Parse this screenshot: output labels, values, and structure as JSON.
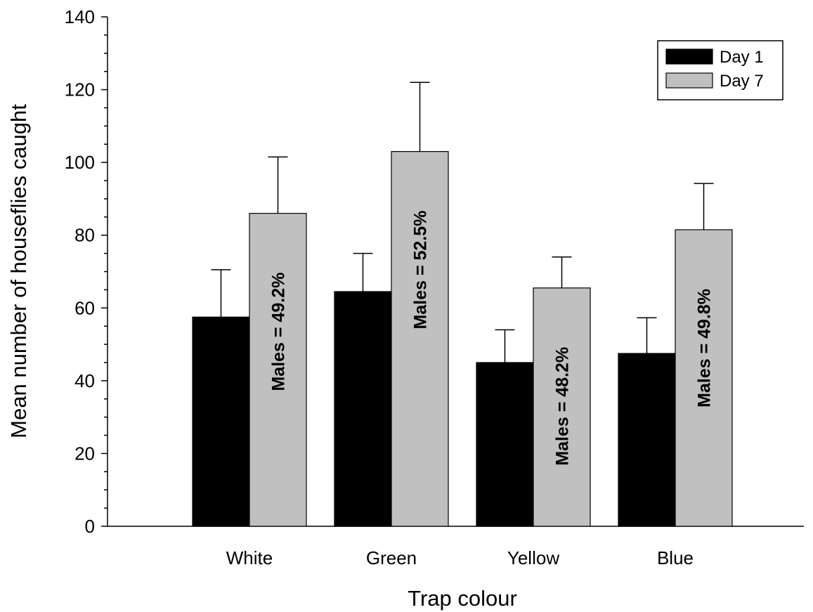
{
  "chart_data": {
    "type": "bar",
    "title": "",
    "xlabel": "Trap colour",
    "ylabel": "Mean number of houseflies caught",
    "ylim": [
      0,
      140
    ],
    "yticks": [
      0,
      20,
      40,
      60,
      80,
      100,
      120,
      140
    ],
    "y_minor_step": 5,
    "categories": [
      "White",
      "Green",
      "Yellow",
      "Blue"
    ],
    "series": [
      {
        "name": "Day 1",
        "color": "#000000",
        "values": [
          57.5,
          64.5,
          45,
          47.5
        ],
        "error": [
          13,
          10.5,
          9,
          9.8
        ]
      },
      {
        "name": "Day 7",
        "color": "#c0c0c0",
        "values": [
          86,
          103,
          65.5,
          81.5
        ],
        "error": [
          15.5,
          19,
          8.5,
          12.7
        ]
      }
    ],
    "annotations": [
      "Males = 49.2%",
      "Males = 52.5%",
      "Males = 48.2%",
      "Males = 49.8%"
    ],
    "legend_position": "top-right",
    "grid": false
  }
}
